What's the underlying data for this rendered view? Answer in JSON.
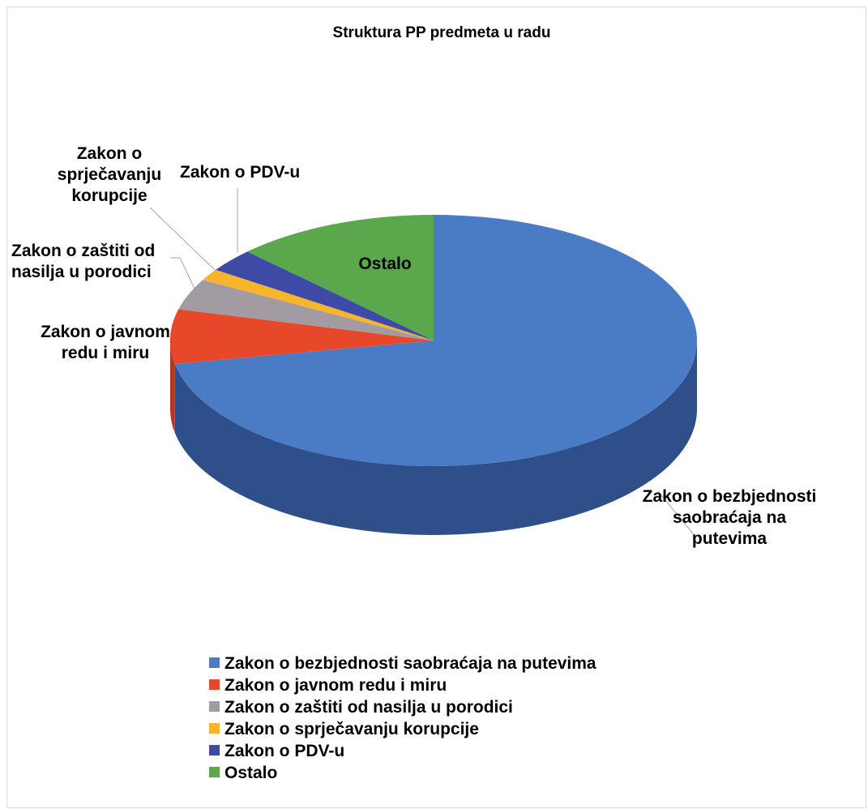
{
  "chart_data": {
    "type": "pie3d",
    "title": "Struktura PP predmeta u radu",
    "categories": [
      "Zakon o bezbjednosti saobraćaja na putevima",
      "Zakon o javnom redu i miru",
      "Zakon o zaštiti od nasilja u porodici",
      "Zakon o sprječavanju korupcije",
      "Zakon o PDV-u",
      "Ostalo"
    ],
    "values": [
      72,
      7,
      4,
      1.5,
      3,
      12.5
    ],
    "colors": [
      "#4a7cc6",
      "#e8482a",
      "#a39ba2",
      "#f8b42a",
      "#3d4aa6",
      "#5aa84b"
    ],
    "side_colors": [
      "#2e4f8a",
      "#b8361f",
      "#7a7379",
      "#c48a1c",
      "#2a3478",
      "#3f7c34"
    ],
    "legend": "bottom"
  }
}
